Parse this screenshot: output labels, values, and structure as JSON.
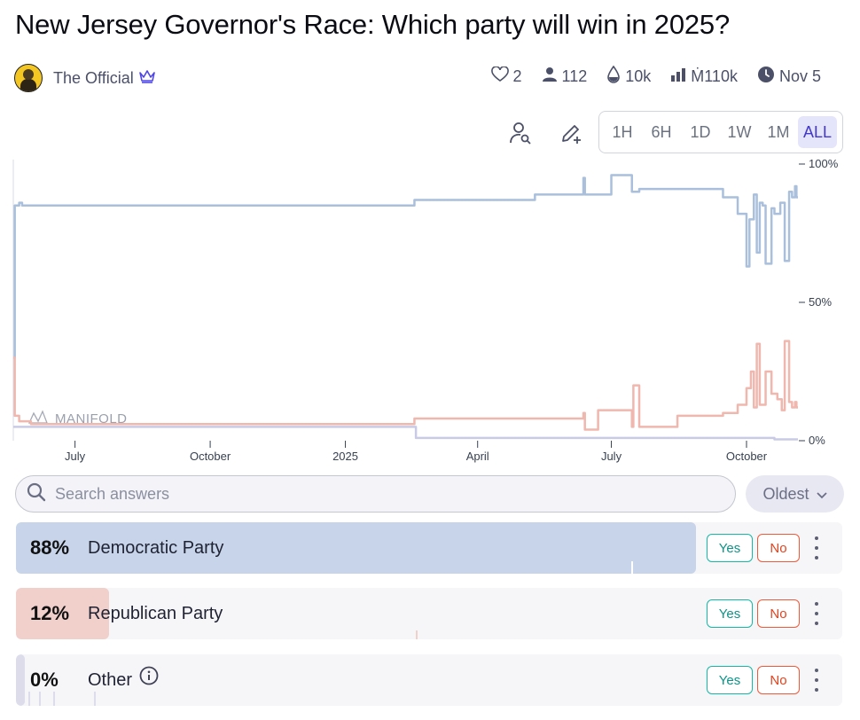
{
  "market": {
    "title": "New Jersey Governor's Race: Which party will win in 2025?",
    "creator": "The Official"
  },
  "stats": {
    "likes": "2",
    "traders": "112",
    "liquidity": "10k",
    "volume": "Ṁ110k",
    "close_date": "Nov 5"
  },
  "toolbar": {
    "timeframes": [
      "1H",
      "6H",
      "1D",
      "1W",
      "1M",
      "ALL"
    ],
    "active_timeframe": "ALL"
  },
  "chart_data": {
    "type": "line",
    "watermark": "MANIFOLD",
    "x_ticks": [
      "July",
      "October",
      "2025",
      "April",
      "July",
      "October"
    ],
    "y_ticks": [
      "100%",
      "50%",
      "0%"
    ],
    "ylim": [
      0,
      100
    ],
    "series": [
      {
        "name": "Democratic Party",
        "color": "#a9bfdc",
        "x": [
          "2024-05-20",
          "2024-05-21",
          "2024-05-24",
          "2024-05-26",
          "2024-06-01",
          "2025-02-17",
          "2025-05-10",
          "2025-06-12",
          "2025-06-13",
          "2025-06-15",
          "2025-06-22",
          "2025-07-01",
          "2025-07-15",
          "2025-07-16",
          "2025-07-20",
          "2025-08-15",
          "2025-09-15",
          "2025-09-25",
          "2025-10-01",
          "2025-10-03",
          "2025-10-06",
          "2025-10-08",
          "2025-10-10",
          "2025-10-12",
          "2025-10-14",
          "2025-10-18",
          "2025-10-20",
          "2025-10-24",
          "2025-10-27",
          "2025-10-30",
          "2025-11-01",
          "2025-11-03",
          "2025-11-04"
        ],
        "y": [
          30,
          85,
          86,
          85,
          85,
          87,
          89,
          95,
          89,
          89,
          89,
          96,
          90,
          90,
          91,
          91,
          88,
          82,
          63,
          80,
          89,
          68,
          86,
          85,
          64,
          84,
          82,
          86,
          65,
          90,
          88,
          92,
          88
        ]
      },
      {
        "name": "Republican Party",
        "color": "#efb7ae",
        "x": [
          "2024-05-20",
          "2024-05-21",
          "2024-05-24",
          "2024-06-01",
          "2025-02-17",
          "2025-06-12",
          "2025-06-13",
          "2025-06-22",
          "2025-07-15",
          "2025-07-16",
          "2025-07-20",
          "2025-08-15",
          "2025-09-15",
          "2025-09-25",
          "2025-10-01",
          "2025-10-04",
          "2025-10-06",
          "2025-10-08",
          "2025-10-10",
          "2025-10-14",
          "2025-10-18",
          "2025-10-22",
          "2025-10-25",
          "2025-10-27",
          "2025-10-30",
          "2025-11-01",
          "2025-11-03",
          "2025-11-04"
        ],
        "y": [
          30,
          9,
          7,
          6,
          8,
          10,
          4,
          11,
          5,
          20,
          5,
          9,
          10,
          13,
          19,
          25,
          12,
          35,
          13,
          25,
          17,
          15,
          11,
          36,
          14,
          12,
          14,
          12
        ]
      },
      {
        "name": "Other",
        "color": "#c9cbe6",
        "x": [
          "2024-05-20",
          "2024-05-22",
          "2025-02-17",
          "2025-02-18",
          "2025-10-20",
          "2025-11-04"
        ],
        "y": [
          5,
          5,
          5,
          1,
          0.5,
          0.5
        ]
      }
    ]
  },
  "search": {
    "placeholder": "Search answers",
    "value": ""
  },
  "sort": {
    "selected": "Oldest"
  },
  "answers": [
    {
      "pct_label": "88%",
      "label": "Democratic Party",
      "probability": 0.88,
      "color": "#c7d4ea",
      "yes": "Yes",
      "no": "No"
    },
    {
      "pct_label": "12%",
      "label": "Republican Party",
      "probability": 0.12,
      "color": "#f1cfcb",
      "yes": "Yes",
      "no": "No"
    },
    {
      "pct_label": "0%",
      "label": "Other",
      "probability": 0.0,
      "color": "#dcdcea",
      "yes": "Yes",
      "no": "No"
    }
  ]
}
